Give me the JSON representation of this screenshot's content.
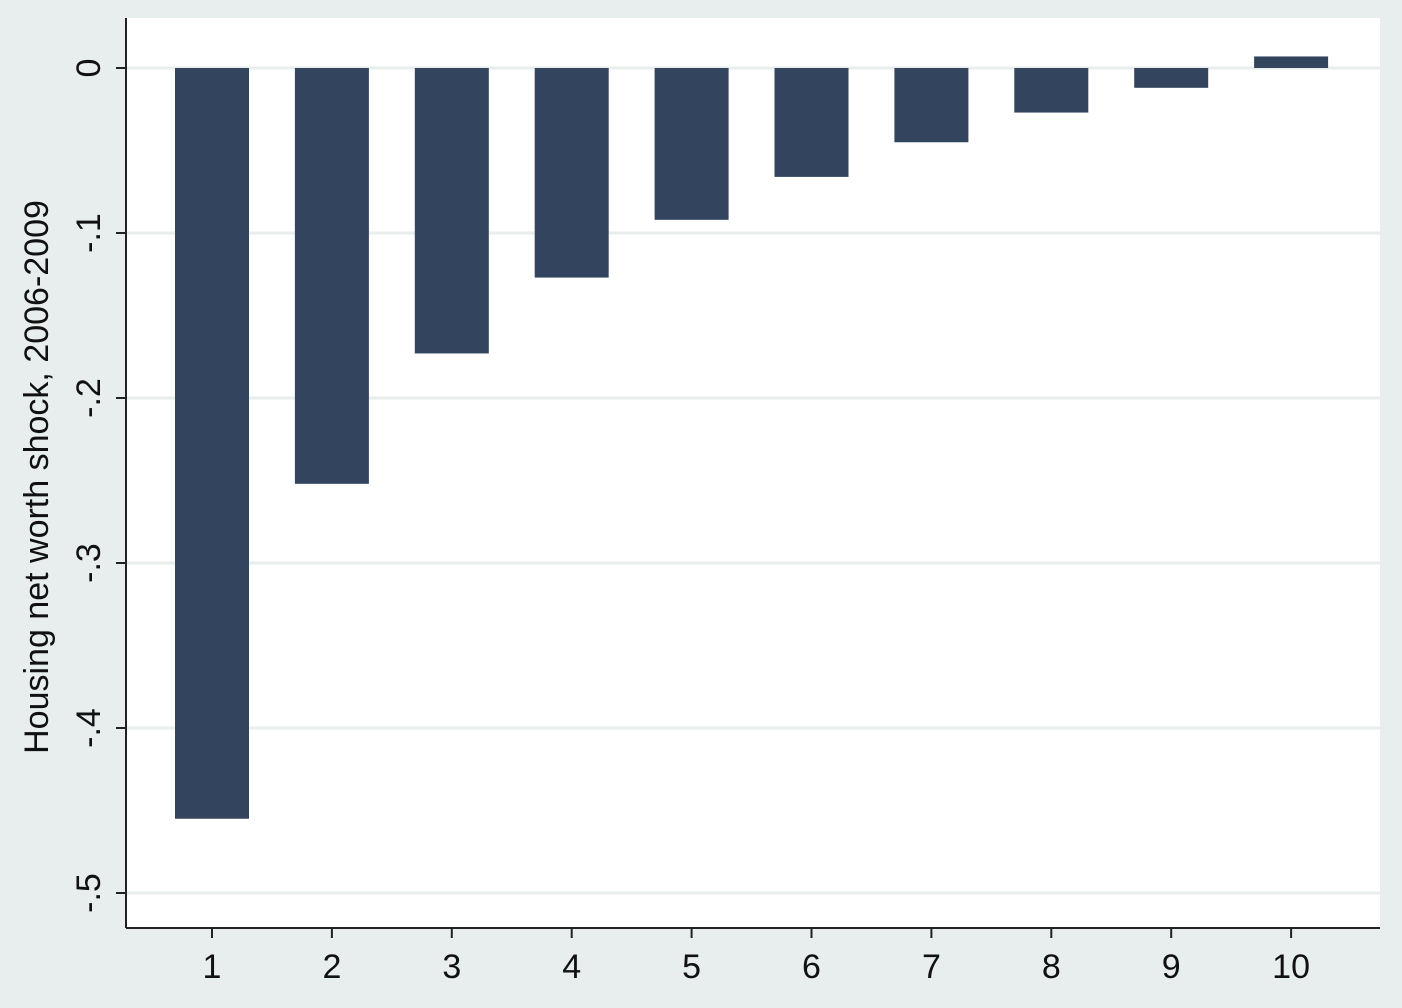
{
  "chart_data": {
    "type": "bar",
    "categories": [
      "1",
      "2",
      "3",
      "4",
      "5",
      "6",
      "7",
      "8",
      "9",
      "10"
    ],
    "values": [
      -0.455,
      -0.252,
      -0.173,
      -0.127,
      -0.092,
      -0.066,
      -0.045,
      -0.027,
      -0.012,
      0.007
    ],
    "title": "",
    "xlabel": "",
    "ylabel": "Housing net worth shock, 2006-2009",
    "ylim": [
      -0.5,
      0
    ],
    "yticks": [
      0,
      -0.1,
      -0.2,
      -0.3,
      -0.4,
      -0.5
    ],
    "ytick_labels": [
      "0",
      "-.1",
      "-.2",
      "-.3",
      "-.4",
      "-.5"
    ],
    "grid": true,
    "legend": "none",
    "colors": {
      "bar": "#33445f",
      "plot_background": "#ffffff",
      "outer_background": "#e8eeee",
      "gridline": "#e8eeee",
      "axis": "#222222"
    }
  }
}
